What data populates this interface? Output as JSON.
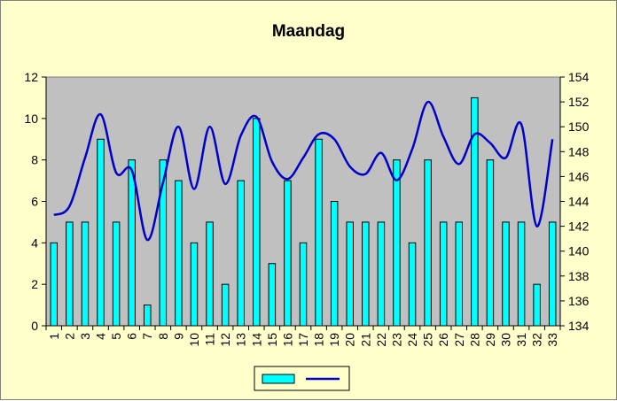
{
  "chart_data": {
    "type": "bar",
    "title": "Maandag",
    "categories": [
      "1",
      "2",
      "3",
      "4",
      "5",
      "6",
      "7",
      "8",
      "9",
      "10",
      "11",
      "12",
      "13",
      "14",
      "15",
      "16",
      "17",
      "18",
      "19",
      "20",
      "21",
      "22",
      "23",
      "24",
      "25",
      "26",
      "27",
      "28",
      "29",
      "30",
      "31",
      "32",
      "33"
    ],
    "series": [
      {
        "type": "bar",
        "axis": "left",
        "values": [
          4,
          5,
          5,
          9,
          5,
          8,
          1,
          8,
          7,
          4,
          5,
          2,
          7,
          10,
          3,
          7,
          4,
          9,
          6,
          5,
          5,
          5,
          8,
          4,
          8,
          5,
          5,
          11,
          8,
          5,
          5,
          2,
          5
        ]
      },
      {
        "type": "line",
        "axis": "right",
        "smooth": true,
        "values": [
          142.9,
          143.6,
          147.5,
          151.0,
          146.3,
          146.5,
          140.9,
          145.5,
          150.0,
          145.0,
          150.0,
          145.4,
          149.3,
          150.8,
          147.2,
          145.8,
          147.5,
          149.4,
          149.0,
          146.8,
          146.2,
          147.9,
          145.7,
          148.2,
          152.0,
          149.2,
          147.0,
          149.4,
          148.7,
          147.5,
          150.2,
          142.0,
          149.0
        ]
      }
    ],
    "ylim": [
      0,
      12
    ],
    "yticks": [
      0,
      2,
      4,
      6,
      8,
      10,
      12
    ],
    "y2lim": [
      134,
      154
    ],
    "y2ticks": [
      134,
      136,
      138,
      140,
      142,
      144,
      146,
      148,
      150,
      152,
      154
    ],
    "grid": false,
    "legend": "bottom-center",
    "colors": {
      "background": "#ffffcc",
      "plot_area": "#c0c0c0",
      "bar_fill": "#00ffff",
      "bar_stroke": "#000000",
      "line": "#0000cc"
    }
  }
}
